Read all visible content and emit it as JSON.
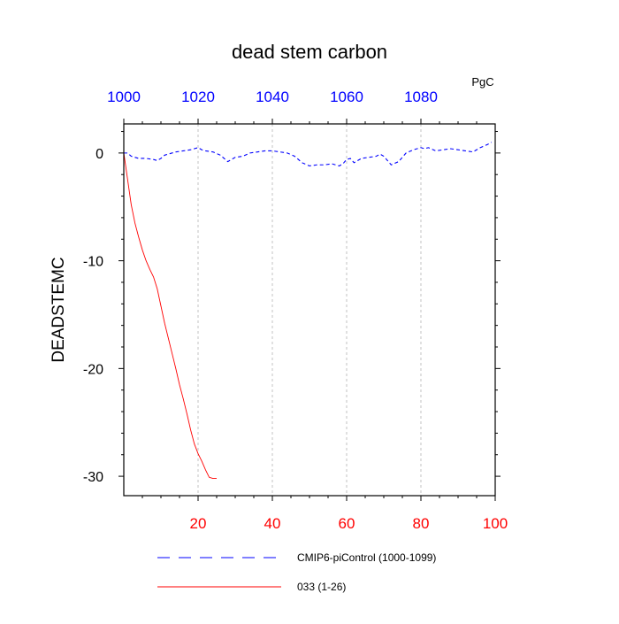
{
  "chart_data": {
    "type": "line",
    "title": "dead stem carbon",
    "units": "PgC",
    "ylabel": "DEADSTEMC",
    "xlabel": "",
    "xlim": [
      0,
      100
    ],
    "ylim": [
      -31.8,
      2.7
    ],
    "bottom_axis": {
      "ticks": [
        20,
        40,
        60,
        80,
        100
      ],
      "labels": [
        "20",
        "40",
        "60",
        "80",
        "100"
      ],
      "color": "#ff0000"
    },
    "top_axis": {
      "ticks": [
        0,
        20,
        40,
        60,
        80
      ],
      "labels": [
        "1000",
        "1020",
        "1040",
        "1060",
        "1080"
      ],
      "color": "#0000ff"
    },
    "y_ticks": [
      0,
      -10,
      -20,
      -30
    ],
    "y_tick_labels": [
      "0",
      "-10",
      "-20",
      "-30"
    ],
    "grid": "vertical dashed at 20, 40, 60, 80",
    "legend_position": "bottom",
    "series": [
      {
        "name": "CMIP6-piControl (1000-1099)",
        "color": "#0000ff",
        "style": "dashed",
        "x": [
          0,
          1,
          2,
          4,
          6,
          8,
          9,
          10,
          11,
          12,
          14,
          16,
          18,
          19,
          20,
          21,
          22,
          24,
          26,
          28,
          30,
          32,
          34,
          36,
          38,
          40,
          42,
          44,
          46,
          48,
          50,
          52,
          54,
          56,
          58,
          59,
          60,
          61,
          62,
          64,
          66,
          68,
          69,
          70,
          72,
          74,
          76,
          78,
          80,
          81,
          82,
          84,
          86,
          88,
          90,
          92,
          94,
          96,
          98,
          99
        ],
        "y": [
          0.0,
          0.0,
          -0.3,
          -0.5,
          -0.5,
          -0.6,
          -0.7,
          -0.5,
          -0.2,
          -0.1,
          0.1,
          0.2,
          0.3,
          0.4,
          0.5,
          0.3,
          0.2,
          0.1,
          -0.2,
          -0.8,
          -0.4,
          -0.3,
          0.0,
          0.1,
          0.2,
          0.2,
          0.1,
          0.0,
          -0.3,
          -0.9,
          -1.2,
          -1.1,
          -1.1,
          -1.0,
          -1.2,
          -1.0,
          -0.6,
          -0.5,
          -0.9,
          -0.5,
          -0.4,
          -0.3,
          -0.1,
          -0.3,
          -1.1,
          -0.8,
          0.0,
          0.3,
          0.5,
          0.4,
          0.5,
          0.2,
          0.3,
          0.4,
          0.3,
          0.2,
          0.1,
          0.5,
          0.8,
          1.0
        ]
      },
      {
        "name": "033 (1-26)",
        "color": "#ff0000",
        "style": "solid",
        "x": [
          0,
          1,
          2,
          3,
          4,
          5,
          6,
          7,
          8,
          9,
          10,
          11,
          12,
          13,
          14,
          15,
          16,
          17,
          18,
          19,
          20,
          21,
          22,
          23,
          24,
          25
        ],
        "y": [
          0,
          -2.4,
          -4.8,
          -6.5,
          -7.8,
          -9.0,
          -10.0,
          -10.8,
          -11.5,
          -12.6,
          -14.2,
          -15.8,
          -17.2,
          -18.6,
          -20.0,
          -21.5,
          -22.8,
          -24.2,
          -25.7,
          -27.0,
          -27.9,
          -28.6,
          -29.4,
          -30.1,
          -30.2,
          -30.2
        ]
      }
    ]
  }
}
